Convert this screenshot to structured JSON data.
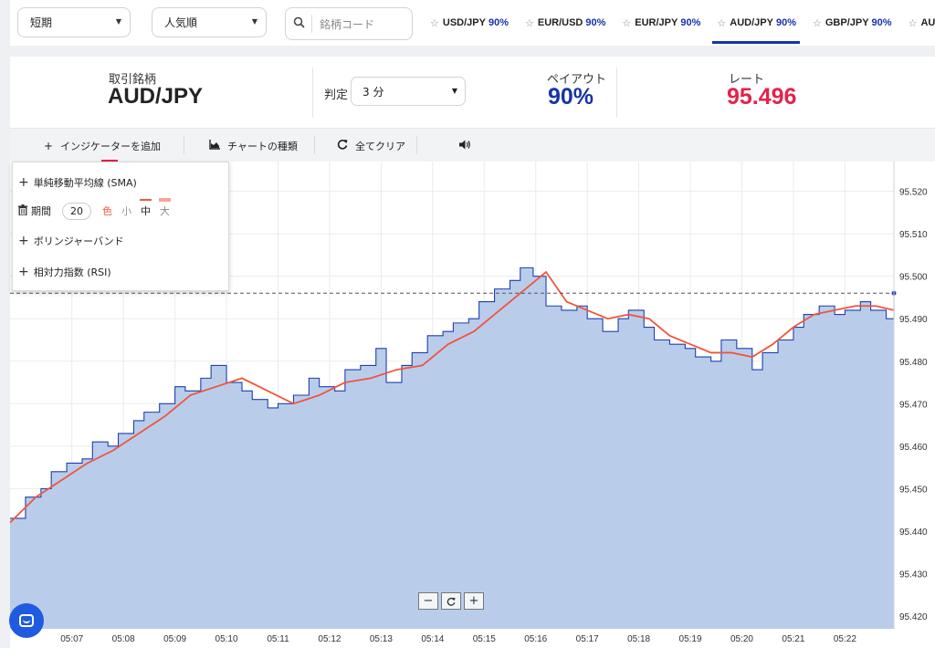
{
  "filters": {
    "term": "短期",
    "sort": "人気順",
    "search_placeholder": "銘柄コード"
  },
  "pair_tabs": [
    {
      "symbol": "USD/JPY",
      "payout": "90%",
      "active": false
    },
    {
      "symbol": "EUR/USD",
      "payout": "90%",
      "active": false
    },
    {
      "symbol": "EUR/JPY",
      "payout": "90%",
      "active": false
    },
    {
      "symbol": "AUD/JPY",
      "payout": "90%",
      "active": true
    },
    {
      "symbol": "GBP/JPY",
      "payout": "90%",
      "active": false
    },
    {
      "symbol": "AUD/",
      "payout": "",
      "active": false
    }
  ],
  "info": {
    "instrument_label": "取引銘柄",
    "instrument": "AUD/JPY",
    "judge_label": "判定",
    "judge_value": "3 分",
    "payout_label": "ペイアウト",
    "payout_value": "90%",
    "rate_label": "レート",
    "rate_value": "95.496"
  },
  "toolbar": {
    "add_indicator": "インジケーターを追加",
    "chart_type": "チャートの種類",
    "clear_all": "全てクリア"
  },
  "indicator_panel": {
    "sma": "単純移動平均線 (SMA)",
    "period_label": "期間",
    "period_value": "20",
    "color_label": "色",
    "size_small": "小",
    "size_mid": "中",
    "size_large": "大",
    "bollinger": "ボリンジャーバンド",
    "rsi": "相対力指数 (RSI)"
  },
  "colors": {
    "accent_blue": "#1634a7",
    "rate_red": "#e4224a",
    "area_fill": "#b9cdeb",
    "price_line": "#1f3fae",
    "sma_line": "#f0553b"
  },
  "chart_data": {
    "type": "area",
    "xlabel": "",
    "ylabel": "",
    "x_ticks": [
      "05:07",
      "05:08",
      "05:09",
      "05:10",
      "05:11",
      "05:12",
      "05:13",
      "05:14",
      "05:15",
      "05:16",
      "05:17",
      "05:18",
      "05:19",
      "05:20",
      "05:21",
      "05:22"
    ],
    "y_ticks": [
      "95.420",
      "95.430",
      "95.440",
      "95.450",
      "95.460",
      "95.470",
      "95.480",
      "95.490",
      "95.500",
      "95.510",
      "95.520"
    ],
    "ylim": [
      95.417,
      95.527
    ],
    "xlim_minutes": [
      5.8,
      22.95
    ],
    "current_rate": 95.496,
    "grid": true,
    "series": [
      {
        "name": "AUD/JPY",
        "x": [
          5.8,
          6.1,
          6.4,
          6.6,
          6.9,
          7.2,
          7.4,
          7.7,
          7.9,
          8.2,
          8.4,
          8.7,
          9.0,
          9.2,
          9.5,
          9.7,
          10.0,
          10.3,
          10.5,
          10.8,
          11.0,
          11.3,
          11.6,
          11.8,
          12.1,
          12.3,
          12.6,
          12.9,
          13.1,
          13.4,
          13.6,
          13.9,
          14.2,
          14.4,
          14.7,
          14.9,
          15.2,
          15.5,
          15.7,
          15.95,
          16.2,
          16.5,
          16.8,
          17.0,
          17.3,
          17.6,
          17.8,
          18.1,
          18.3,
          18.6,
          18.9,
          19.1,
          19.4,
          19.6,
          19.9,
          20.2,
          20.4,
          20.7,
          21.0,
          21.2,
          21.5,
          21.8,
          22.0,
          22.3,
          22.5,
          22.8,
          22.95
        ],
        "values": [
          95.443,
          95.448,
          95.45,
          95.454,
          95.456,
          95.457,
          95.461,
          95.46,
          95.463,
          95.466,
          95.468,
          95.47,
          95.474,
          95.473,
          95.476,
          95.479,
          95.475,
          95.473,
          95.471,
          95.469,
          95.47,
          95.472,
          95.476,
          95.474,
          95.473,
          95.478,
          95.479,
          95.483,
          95.475,
          95.479,
          95.482,
          95.486,
          95.487,
          95.489,
          95.49,
          95.494,
          95.497,
          95.499,
          95.502,
          95.5,
          95.493,
          95.492,
          95.493,
          95.49,
          95.487,
          95.49,
          95.492,
          95.488,
          95.485,
          95.484,
          95.483,
          95.481,
          95.48,
          95.485,
          95.483,
          95.478,
          95.482,
          95.485,
          95.488,
          95.491,
          95.493,
          95.491,
          95.492,
          95.494,
          95.492,
          95.49,
          95.496
        ]
      },
      {
        "name": "SMA",
        "x": [
          5.8,
          6.3,
          6.8,
          7.3,
          7.8,
          8.3,
          8.8,
          9.3,
          9.8,
          10.3,
          10.8,
          11.3,
          11.8,
          12.3,
          12.8,
          13.3,
          13.8,
          14.3,
          14.8,
          15.3,
          15.8,
          16.2,
          16.6,
          17.0,
          17.4,
          17.8,
          18.2,
          18.6,
          19.0,
          19.4,
          19.8,
          20.2,
          20.6,
          21.0,
          21.4,
          21.8,
          22.2,
          22.6,
          22.95
        ],
        "values": [
          95.442,
          95.448,
          95.452,
          95.456,
          95.459,
          95.463,
          95.467,
          95.472,
          95.474,
          95.476,
          95.473,
          95.47,
          95.472,
          95.475,
          95.476,
          95.478,
          95.479,
          95.484,
          95.487,
          95.492,
          95.497,
          95.501,
          95.494,
          95.492,
          95.49,
          95.491,
          95.49,
          95.486,
          95.484,
          95.482,
          95.482,
          95.481,
          95.484,
          95.488,
          95.491,
          95.492,
          95.493,
          95.493,
          95.492
        ]
      }
    ]
  }
}
